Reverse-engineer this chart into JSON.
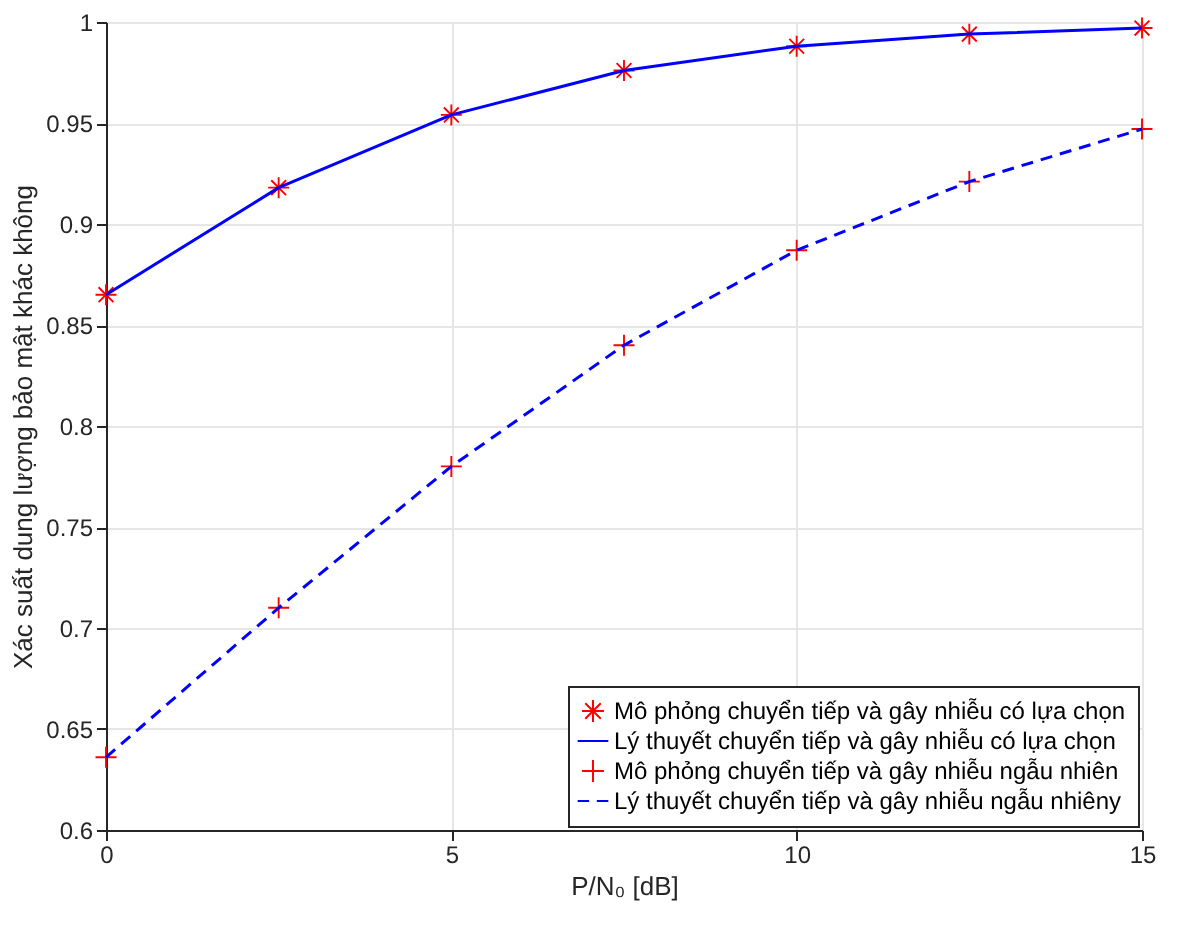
{
  "chart_data": {
    "type": "line",
    "xlabel": "P/N₀ [dB]",
    "ylabel": "Xác suất dung lượng bảo mật khác không",
    "x": [
      0,
      2.5,
      5,
      7.5,
      10,
      12.5,
      15
    ],
    "xlim": [
      0,
      15
    ],
    "xticks": [
      0,
      5,
      10,
      15
    ],
    "ylim": [
      0.6,
      1
    ],
    "yticks": [
      0.6,
      0.65,
      0.7,
      0.75,
      0.8,
      0.85,
      0.9,
      0.95,
      1
    ],
    "grid": true,
    "legend": "bottom right",
    "series": [
      {
        "type": "scatter",
        "marker": "star",
        "name": "Mô phỏng chuyển tiếp và gây nhiễu có lựa chọn",
        "color": "#ff0000",
        "values": [
          0.865,
          0.918,
          0.954,
          0.976,
          0.988,
          0.994,
          0.997
        ]
      },
      {
        "line_style": "solid",
        "name": "Lý thuyết chuyển tiếp và gây nhiễu có lựa chọn",
        "color": "#0000ff",
        "values": [
          0.865,
          0.918,
          0.954,
          0.976,
          0.988,
          0.994,
          0.997
        ]
      },
      {
        "type": "scatter",
        "marker": "cross",
        "name": "Mô phỏng chuyển tiếp và gây nhiễu ngẫu nhiên",
        "color": "#ff0000",
        "values": [
          0.636,
          0.71,
          0.78,
          0.84,
          0.887,
          0.921,
          0.947
        ]
      },
      {
        "line_style": "dashed",
        "name": "Lý thuyết chuyển tiếp và gây nhiễu ngẫu nhiêny",
        "color": "#0000ff",
        "values": [
          0.636,
          0.71,
          0.78,
          0.84,
          0.887,
          0.921,
          0.947
        ]
      }
    ]
  }
}
